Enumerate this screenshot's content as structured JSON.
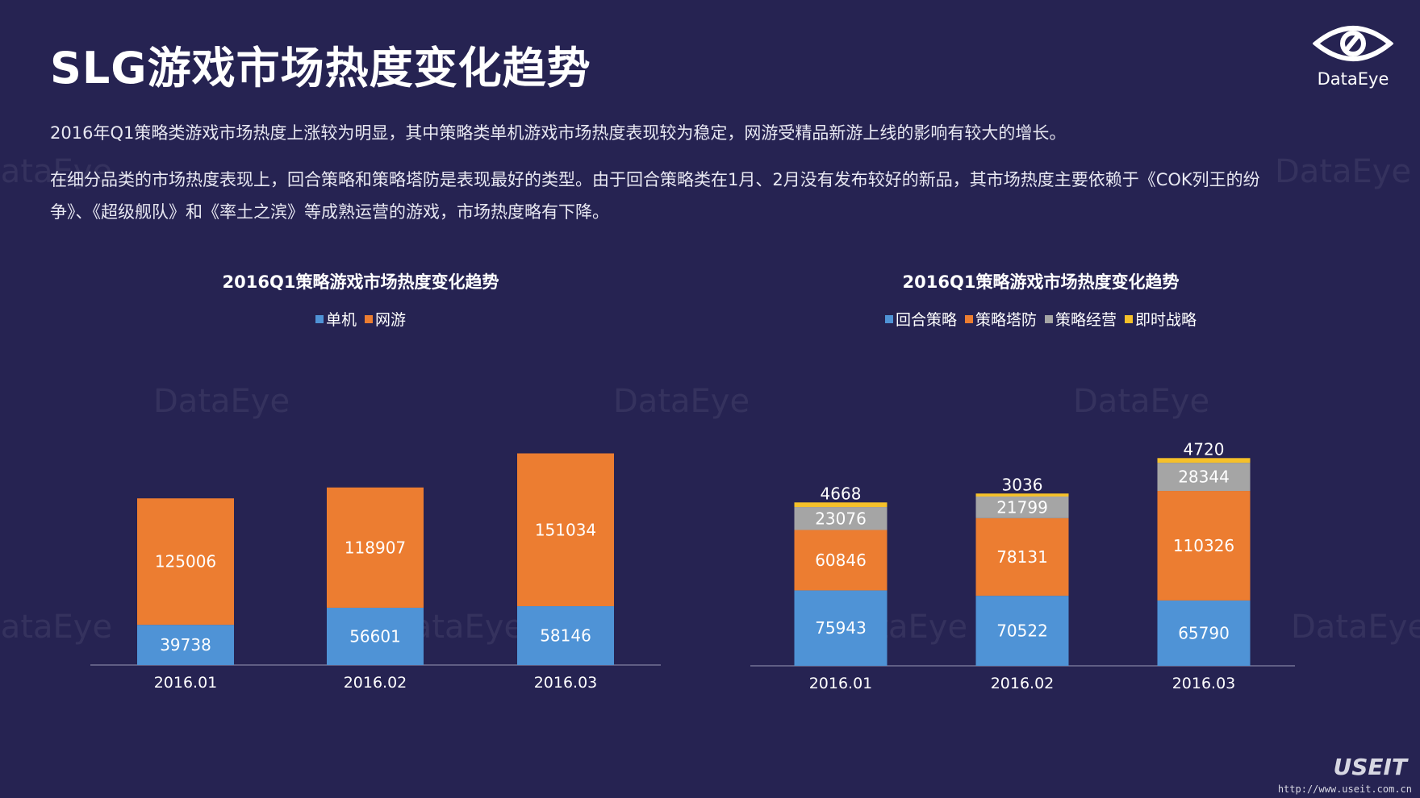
{
  "page": {
    "title": "SLG游戏市场热度变化趋势",
    "paragraph1": "2016年Q1策略类游戏市场热度上涨较为明显，其中策略类单机游戏市场热度表现较为稳定，网游受精品新游上线的影响有较大的增长。",
    "paragraph2": "在细分品类的市场热度表现上，回合策略和策略塔防是表现最好的类型。由于回合策略类在1月、2月没有发布较好的新品，其市场热度主要依赖于《COK列王的纷争》、《超级舰队》和《率土之滨》等成熟运营的游戏，市场热度略有下降。"
  },
  "logo": {
    "text": "DataEye",
    "icon": "eye-icon"
  },
  "watermark_text": "DataEye",
  "footer": {
    "brand": "USEIT",
    "url": "http://www.useit.com.cn"
  },
  "colors": {
    "background": "#262352",
    "blue": "#4f93d6",
    "orange": "#ec7d31",
    "gray": "#a5a5a5",
    "yellow": "#f5c02a"
  },
  "chart_data": [
    {
      "type": "bar",
      "stacked": true,
      "title": "2016Q1策略游戏市场热度变化趋势",
      "categories": [
        "2016.01",
        "2016.02",
        "2016.03"
      ],
      "series": [
        {
          "name": "单机",
          "values": [
            39738,
            56601,
            58146
          ],
          "color": "#4f93d6"
        },
        {
          "name": "网游",
          "values": [
            125006,
            118907,
            151034
          ],
          "color": "#ec7d31"
        }
      ],
      "legend": "top",
      "grid": false
    },
    {
      "type": "bar",
      "stacked": true,
      "title": "2016Q1策略游戏市场热度变化趋势",
      "categories": [
        "2016.01",
        "2016.02",
        "2016.03"
      ],
      "series": [
        {
          "name": "回合策略",
          "values": [
            75943,
            70522,
            65790
          ],
          "color": "#4f93d6"
        },
        {
          "name": "策略塔防",
          "values": [
            60846,
            78131,
            110326
          ],
          "color": "#ec7d31"
        },
        {
          "name": "策略经营",
          "values": [
            23076,
            21799,
            28344
          ],
          "color": "#a5a5a5"
        },
        {
          "name": "即时战略",
          "values": [
            4668,
            3036,
            4720
          ],
          "color": "#f5c02a"
        }
      ],
      "legend": "top",
      "grid": false
    }
  ]
}
